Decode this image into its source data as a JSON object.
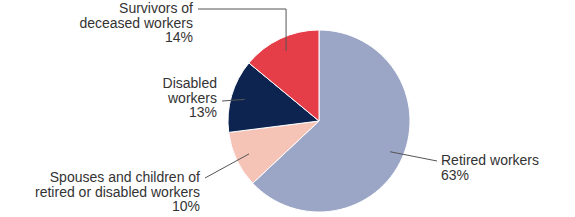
{
  "chart_data": {
    "type": "pie",
    "categories": [
      "Retired workers",
      "Spouses and children of retired or disabled workers",
      "Disabled workers",
      "Survivors of deceased workers"
    ],
    "values": [
      63,
      10,
      13,
      14
    ],
    "value_labels": [
      "63%",
      "10%",
      "13%",
      "14%"
    ],
    "colors": [
      "#9ba5c6",
      "#f6c3b7",
      "#0d2350",
      "#e63e48"
    ],
    "data_labels": true
  }
}
